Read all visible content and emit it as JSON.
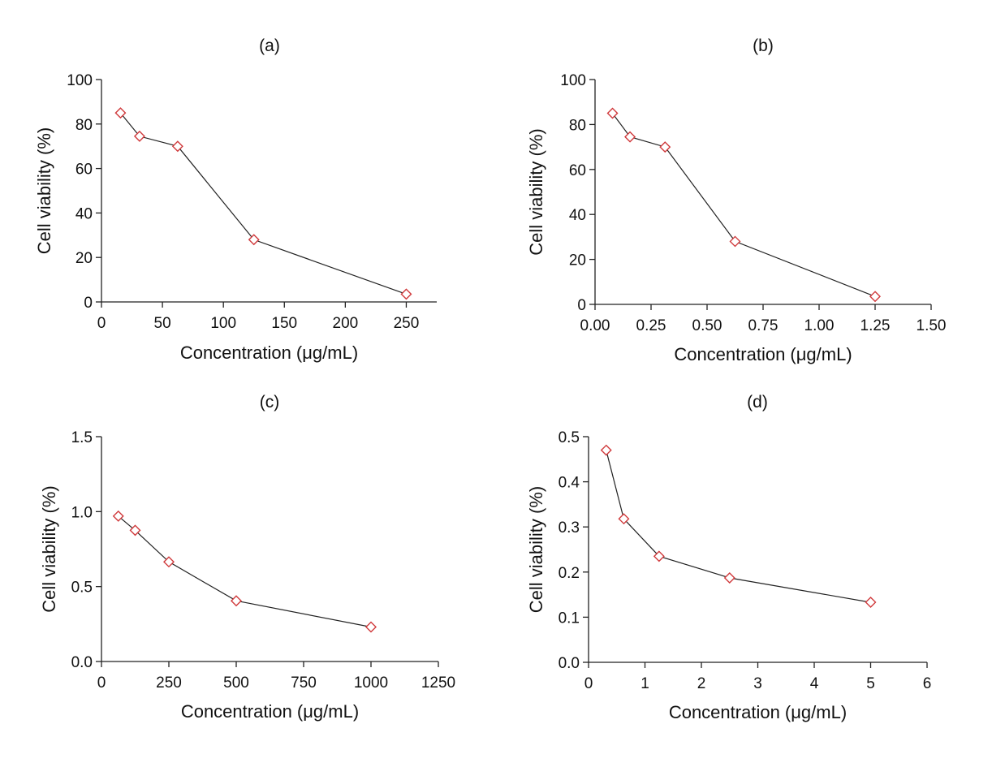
{
  "figure": {
    "marker_color": "#d0393b",
    "line_color": "#222222"
  },
  "chart_data": [
    {
      "id": "a",
      "type": "line",
      "title": "(a)",
      "xlabel": "Concentration (μg/mL)",
      "ylabel": "Cell viability (%)",
      "xlim": [
        0,
        275
      ],
      "ylim": [
        0,
        100
      ],
      "xticks": [
        0,
        50,
        100,
        150,
        200,
        250
      ],
      "xtick_labels": [
        "0",
        "50",
        "100",
        "150",
        "200",
        "250"
      ],
      "yticks": [
        0,
        20,
        40,
        60,
        80,
        100
      ],
      "ytick_labels": [
        "0",
        "20",
        "40",
        "60",
        "80",
        "100"
      ],
      "grid": false,
      "marker": "diamond",
      "x": [
        15.6,
        31.25,
        62.5,
        125,
        250
      ],
      "y": [
        85,
        74.5,
        70,
        28,
        3.5
      ]
    },
    {
      "id": "b",
      "type": "line",
      "title": "(b)",
      "xlabel": "Concentration (μg/mL)",
      "ylabel": "Cell viability (%)",
      "xlim": [
        0,
        1.5
      ],
      "ylim": [
        0,
        100
      ],
      "xticks": [
        0,
        0.25,
        0.5,
        0.75,
        1.0,
        1.25,
        1.5
      ],
      "xtick_labels": [
        "0.00",
        "0.25",
        "0.50",
        "0.75",
        "1.00",
        "1.25",
        "1.50"
      ],
      "yticks": [
        0,
        20,
        40,
        60,
        80,
        100
      ],
      "ytick_labels": [
        "0",
        "20",
        "40",
        "60",
        "80",
        "100"
      ],
      "grid": false,
      "marker": "diamond",
      "x": [
        0.078,
        0.156,
        0.3125,
        0.625,
        1.25
      ],
      "y": [
        85,
        74.5,
        70,
        28,
        3.5
      ]
    },
    {
      "id": "c",
      "type": "line",
      "title": "(c)",
      "xlabel": "Concentration (μg/mL)",
      "ylabel": "Cell viability (%)",
      "xlim": [
        0,
        1250
      ],
      "ylim": [
        0,
        1.5
      ],
      "xticks": [
        0,
        250,
        500,
        750,
        1000,
        1250
      ],
      "xtick_labels": [
        "0",
        "250",
        "500",
        "750",
        "1000",
        "1250"
      ],
      "yticks": [
        0,
        0.5,
        1.0,
        1.5
      ],
      "ytick_labels": [
        "0.0",
        "0.5",
        "1.0",
        "1.5"
      ],
      "grid": false,
      "marker": "diamond",
      "x": [
        62.5,
        125,
        250,
        500,
        1000
      ],
      "y": [
        0.97,
        0.875,
        0.665,
        0.405,
        0.23
      ]
    },
    {
      "id": "d",
      "type": "line",
      "title": "(d)",
      "xlabel": "Concentration (μg/mL)",
      "ylabel": "Cell viability (%)",
      "xlim": [
        0,
        6
      ],
      "ylim": [
        0,
        0.5
      ],
      "xticks": [
        0,
        1,
        2,
        3,
        4,
        5,
        6
      ],
      "xtick_labels": [
        "0",
        "1",
        "2",
        "3",
        "4",
        "5",
        "6"
      ],
      "yticks": [
        0,
        0.1,
        0.2,
        0.3,
        0.4,
        0.5
      ],
      "ytick_labels": [
        "0.0",
        "0.1",
        "0.2",
        "0.3",
        "0.4",
        "0.5"
      ],
      "grid": false,
      "marker": "diamond",
      "x": [
        0.3125,
        0.625,
        1.25,
        2.5,
        5.0
      ],
      "y": [
        0.47,
        0.318,
        0.235,
        0.187,
        0.133
      ]
    }
  ]
}
